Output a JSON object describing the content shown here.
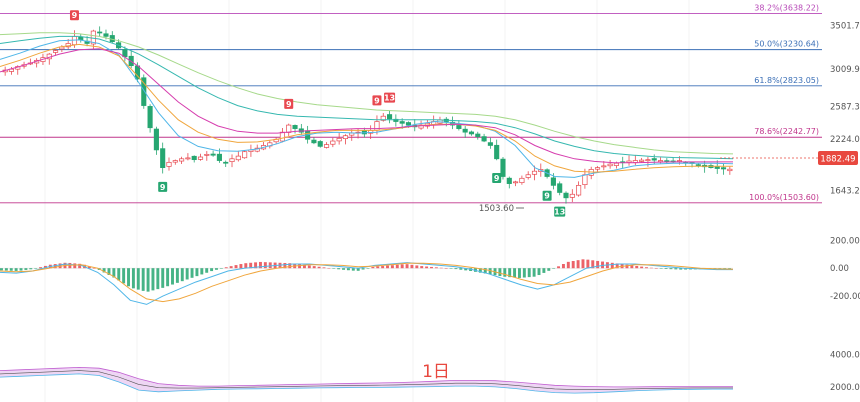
{
  "chart_data": {
    "type": "candlestick",
    "period_label": "1日",
    "last_price": "1882.49",
    "price_axis": {
      "min": 1400,
      "max": 3700,
      "ticks": [
        "3501.70",
        "3009.99",
        "2587.32",
        "2224.01",
        "1643.26"
      ]
    },
    "fib_levels": [
      {
        "label": "38.2%(3638.22)",
        "value": 3638.22,
        "color": "#b84ab8"
      },
      {
        "label": "50.0%(3230.64)",
        "value": 3230.64,
        "color": "#3b6fb6"
      },
      {
        "label": "61.8%(2823.05)",
        "value": 2823.05,
        "color": "#3b6fb6"
      },
      {
        "label": "78.6%(2242.77)",
        "value": 2242.77,
        "color": "#c0368c"
      },
      {
        "label": "100.0%(1503.60)",
        "value": 1503.6,
        "color": "#c0368c"
      }
    ],
    "low_marker": "1503.60",
    "signals": [
      {
        "text": "9",
        "kind": "sell",
        "index": 11
      },
      {
        "text": "9",
        "kind": "buy",
        "index": 25
      },
      {
        "text": "9",
        "kind": "sell",
        "index": 45
      },
      {
        "text": "9",
        "kind": "sell",
        "index": 59
      },
      {
        "text": "13",
        "kind": "sell",
        "index": 61
      },
      {
        "text": "9",
        "kind": "buy",
        "index": 78
      },
      {
        "text": "9",
        "kind": "buy",
        "index": 86
      },
      {
        "text": "13",
        "kind": "buy",
        "index": 88
      }
    ],
    "close_series": [
      3000,
      3010,
      3040,
      3060,
      3080,
      3110,
      3140,
      3180,
      3220,
      3260,
      3300,
      3380,
      3340,
      3300,
      3440,
      3420,
      3380,
      3320,
      3250,
      3150,
      3050,
      2900,
      2600,
      2350,
      2100,
      1900,
      1960,
      1980,
      2000,
      2010,
      1990,
      2020,
      2050,
      2040,
      1980,
      1960,
      2000,
      2030,
      2080,
      2100,
      2120,
      2150,
      2180,
      2220,
      2300,
      2380,
      2340,
      2300,
      2220,
      2180,
      2140,
      2160,
      2200,
      2230,
      2260,
      2290,
      2300,
      2280,
      2320,
      2420,
      2480,
      2450,
      2420,
      2400,
      2380,
      2360,
      2380,
      2400,
      2420,
      2440,
      2420,
      2380,
      2340,
      2300,
      2280,
      2250,
      2200,
      2150,
      2000,
      1800,
      1720,
      1740,
      1780,
      1820,
      1860,
      1880,
      1800,
      1700,
      1620,
      1560,
      1600,
      1700,
      1820,
      1880,
      1900,
      1920,
      1940,
      1950,
      1960,
      1975,
      1980,
      1985,
      1990,
      1985,
      1980,
      1975,
      1970,
      1980,
      1960,
      1950,
      1930,
      1910,
      1900,
      1890,
      1885,
      1882.49
    ],
    "ma_lines": [
      {
        "color": "#4fb6e8",
        "values": [
          3120,
          3190,
          3270,
          3330,
          3340,
          3300,
          3170,
          2860,
          2520,
          2260,
          2140,
          2090,
          2085,
          2110,
          2170,
          2250,
          2290,
          2300,
          2290,
          2300,
          2340,
          2390,
          2420,
          2400,
          2380,
          2310,
          2150,
          1900,
          1800,
          1790,
          1840,
          1870,
          1920,
          1940,
          1950,
          1950,
          1950,
          1945
        ]
      },
      {
        "color": "#f0a63d",
        "values": [
          3040,
          3110,
          3190,
          3260,
          3290,
          3260,
          3160,
          2920,
          2660,
          2440,
          2300,
          2220,
          2185,
          2190,
          2220,
          2270,
          2300,
          2320,
          2320,
          2320,
          2340,
          2370,
          2390,
          2390,
          2370,
          2320,
          2200,
          2030,
          1920,
          1860,
          1850,
          1860,
          1880,
          1900,
          1910,
          1915,
          1915,
          1915
        ]
      },
      {
        "color": "#d63dae",
        "values": [
          2980,
          3040,
          3110,
          3180,
          3230,
          3240,
          3190,
          3040,
          2840,
          2640,
          2480,
          2370,
          2310,
          2290,
          2290,
          2310,
          2320,
          2330,
          2340,
          2340,
          2350,
          2370,
          2380,
          2390,
          2380,
          2350,
          2270,
          2150,
          2060,
          2000,
          1970,
          1955,
          1955,
          1960,
          1965,
          1965,
          1965,
          1965
        ]
      },
      {
        "color": "#36b8b0",
        "values": [
          3300,
          3330,
          3360,
          3380,
          3380,
          3350,
          3280,
          3180,
          3060,
          2930,
          2800,
          2690,
          2600,
          2540,
          2500,
          2480,
          2470,
          2460,
          2450,
          2440,
          2440,
          2440,
          2440,
          2430,
          2420,
          2400,
          2350,
          2280,
          2200,
          2140,
          2090,
          2060,
          2040,
          2025,
          2015,
          2010,
          2005,
          2000
        ]
      },
      {
        "color": "#a6d98a",
        "values": [
          3400,
          3410,
          3420,
          3420,
          3410,
          3380,
          3330,
          3260,
          3170,
          3070,
          2970,
          2880,
          2800,
          2730,
          2680,
          2640,
          2610,
          2590,
          2570,
          2550,
          2540,
          2530,
          2520,
          2510,
          2500,
          2480,
          2440,
          2380,
          2310,
          2250,
          2200,
          2160,
          2130,
          2100,
          2080,
          2070,
          2060,
          2055
        ]
      }
    ],
    "macd": {
      "ticks": [
        "200.00",
        "0.00",
        "-200.00"
      ],
      "min": -300,
      "max": 260,
      "dif": [
        -30,
        -35,
        -20,
        10,
        30,
        20,
        -30,
        -120,
        -230,
        -260,
        -200,
        -150,
        -100,
        -60,
        -20,
        0,
        10,
        20,
        30,
        30,
        20,
        10,
        0,
        20,
        30,
        40,
        30,
        20,
        10,
        -10,
        -40,
        -80,
        -120,
        -150,
        -120,
        -60,
        0,
        20,
        30,
        30,
        20,
        10,
        0,
        -5,
        -10,
        -10
      ],
      "dea": [
        -20,
        -25,
        -20,
        0,
        20,
        25,
        0,
        -60,
        -150,
        -220,
        -240,
        -220,
        -180,
        -130,
        -90,
        -50,
        -20,
        0,
        15,
        25,
        25,
        20,
        10,
        15,
        25,
        35,
        35,
        30,
        20,
        5,
        -15,
        -45,
        -80,
        -110,
        -120,
        -100,
        -60,
        -20,
        10,
        25,
        25,
        20,
        10,
        0,
        -5,
        -8
      ],
      "hist": [
        -15,
        -20,
        -5,
        25,
        40,
        30,
        -10,
        -70,
        -140,
        -170,
        -140,
        -100,
        -60,
        -20,
        10,
        35,
        45,
        40,
        35,
        20,
        5,
        -10,
        -20,
        10,
        20,
        30,
        15,
        5,
        -5,
        -20,
        -40,
        -60,
        -70,
        -60,
        -10,
        45,
        65,
        50,
        35,
        20,
        5,
        -5,
        -10,
        -8,
        -6,
        -5
      ]
    },
    "volume": {
      "ticks": [
        "4000.00",
        "2000.00"
      ],
      "min": 1500,
      "max": 5500,
      "upper": [
        3000,
        3050,
        3100,
        3150,
        3200,
        3150,
        2900,
        2500,
        2200,
        2100,
        2050,
        2050,
        2080,
        2100,
        2120,
        2150,
        2170,
        2200,
        2220,
        2240,
        2260,
        2300,
        2350,
        2400,
        2400,
        2380,
        2300,
        2200,
        2100,
        2050,
        2020,
        2000,
        2000,
        2010,
        2010,
        2020,
        2020,
        2020
      ],
      "lower": [
        2600,
        2650,
        2700,
        2750,
        2800,
        2700,
        2300,
        1800,
        1700,
        1750,
        1800,
        1850,
        1870,
        1880,
        1900,
        1920,
        1940,
        1950,
        1960,
        1970,
        1980,
        2000,
        2020,
        2050,
        2050,
        2000,
        1900,
        1750,
        1650,
        1620,
        1640,
        1700,
        1760,
        1800,
        1830,
        1850,
        1860,
        1860
      ]
    }
  }
}
